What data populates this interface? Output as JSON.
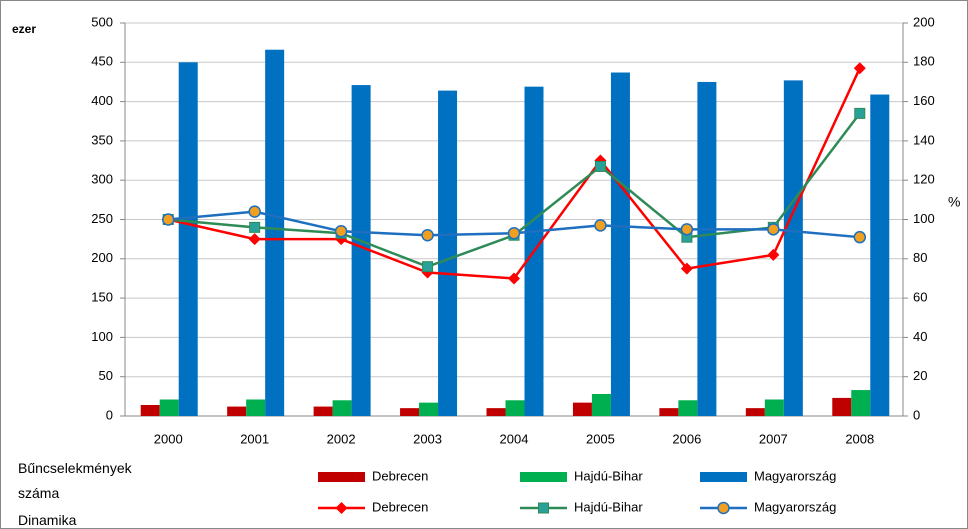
{
  "chart_data": {
    "type": "combo",
    "y_label": "ezer",
    "y2_label": "%",
    "categories": [
      "2000",
      "2001",
      "2002",
      "2003",
      "2004",
      "2005",
      "2006",
      "2007",
      "2008"
    ],
    "ylim": [
      0,
      500
    ],
    "yticks": [
      0,
      50,
      100,
      150,
      200,
      250,
      300,
      350,
      400,
      450,
      500
    ],
    "y2lim": [
      0,
      200
    ],
    "y2ticks": [
      0,
      20,
      40,
      60,
      80,
      100,
      120,
      140,
      160,
      180,
      200
    ],
    "grid": true,
    "legend_groups": [
      "Bűncselekmények száma",
      "Dinamika"
    ],
    "series": [
      {
        "name": "Debrecen",
        "type": "bar",
        "color": "#c00000",
        "values": [
          14,
          12,
          12,
          10,
          10,
          17,
          10,
          10,
          23
        ]
      },
      {
        "name": "Hajdú-Bihar",
        "type": "bar",
        "color": "#00b050",
        "values": [
          21,
          21,
          20,
          17,
          20,
          28,
          20,
          21,
          33
        ]
      },
      {
        "name": "Magyarország",
        "type": "bar",
        "color": "#0070c0",
        "values": [
          450,
          466,
          421,
          414,
          419,
          437,
          425,
          427,
          409
        ]
      },
      {
        "name": "Debrecen",
        "type": "line",
        "axis": "y2",
        "color": "#ff0000",
        "marker": "diamond",
        "marker_color": "#ff0000",
        "values": [
          100,
          90,
          90,
          73,
          70,
          130,
          75,
          82,
          177
        ]
      },
      {
        "name": "Hajdú-Bihar",
        "type": "line",
        "axis": "y2",
        "color": "#2e8b57",
        "marker": "square",
        "marker_color": "#2aa198",
        "values": [
          100,
          96,
          93,
          76,
          92,
          127,
          91,
          96,
          154
        ]
      },
      {
        "name": "Magyarország",
        "type": "line",
        "axis": "y2",
        "color": "#1f6fc0",
        "marker": "circle",
        "marker_color": "#f0a020",
        "values": [
          100,
          104,
          94,
          92,
          93,
          97,
          95,
          95,
          91
        ]
      }
    ]
  }
}
